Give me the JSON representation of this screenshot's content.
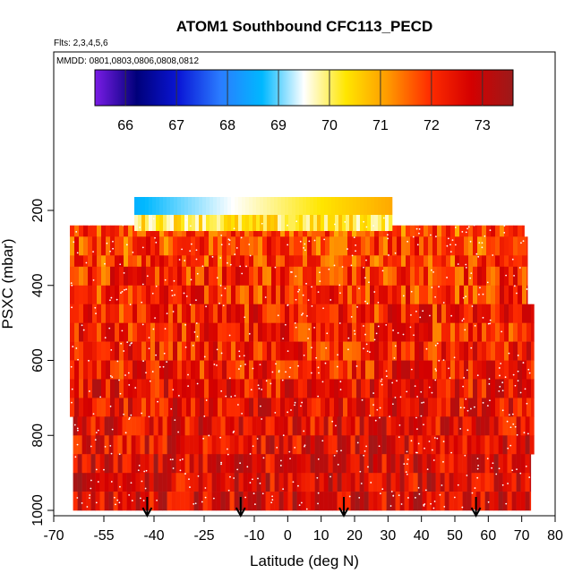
{
  "chart_data": {
    "type": "heatmap",
    "title": "ATOM1 Southbound CFC113_PECD",
    "flights_note": "Flts: 2,3,4,5,6",
    "dates_note": "MMDD: 0801,0803,0806,0808,0812",
    "xlabel": "Latitude (deg N)",
    "ylabel": "PSXC (mbar)",
    "xlim": [
      -70,
      80
    ],
    "ylim": [
      1000,
      0
    ],
    "x_ticks": [
      -70,
      -55,
      -40,
      -25,
      -10,
      0,
      10,
      20,
      30,
      40,
      50,
      60,
      70,
      80
    ],
    "y_ticks": [
      200,
      400,
      600,
      800,
      1000
    ],
    "colorbar": {
      "range": [
        65.4,
        73.6
      ],
      "ticks": [
        66,
        67,
        68,
        69,
        70,
        71,
        72,
        73
      ],
      "colors": [
        "#7a1ce6",
        "#00007a",
        "#0a16d6",
        "#2a7cff",
        "#00b8ff",
        "#ffffff",
        "#ffe600",
        "#ff9a00",
        "#ff2d00",
        "#d40000",
        "#9c1a1a"
      ]
    },
    "flight_marker_latitudes": [
      -41,
      -12,
      20,
      61
    ],
    "approx_values_by_pressure_level": [
      {
        "pressure": 200,
        "value": 70.2,
        "lat_range": [
          -45,
          35
        ]
      },
      {
        "pressure": 240,
        "value": 71.8,
        "lat_range": [
          -65,
          76
        ]
      },
      {
        "pressure": 300,
        "value": 71.9,
        "lat_range": [
          -65,
          77
        ]
      },
      {
        "pressure": 400,
        "value": 72.1,
        "lat_range": [
          -65,
          77
        ]
      },
      {
        "pressure": 500,
        "value": 72.2,
        "lat_range": [
          -65,
          79
        ]
      },
      {
        "pressure": 600,
        "value": 72.3,
        "lat_range": [
          -65,
          79
        ]
      },
      {
        "pressure": 700,
        "value": 72.5,
        "lat_range": [
          -65,
          79
        ]
      },
      {
        "pressure": 800,
        "value": 72.6,
        "lat_range": [
          -64,
          79
        ]
      },
      {
        "pressure": 900,
        "value": 72.7,
        "lat_range": [
          -64,
          78
        ]
      },
      {
        "pressure": 1000,
        "value": 72.7,
        "lat_range": [
          -64,
          78
        ]
      }
    ],
    "grid": false,
    "legend": "top"
  }
}
